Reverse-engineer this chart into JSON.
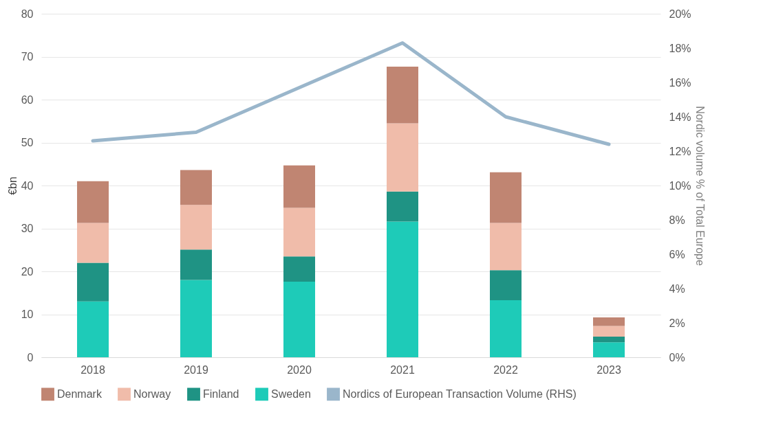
{
  "chart_data": {
    "type": "bar",
    "stacked": true,
    "categories": [
      "2018",
      "2019",
      "2020",
      "2021",
      "2022",
      "2023"
    ],
    "series": [
      {
        "name": "Sweden",
        "color": "#1ecbb8",
        "values": [
          13,
          18,
          17.6,
          31.6,
          13.3,
          3.5
        ]
      },
      {
        "name": "Finland",
        "color": "#1f9384",
        "values": [
          9,
          7.1,
          5.9,
          7,
          7,
          1.3
        ]
      },
      {
        "name": "Norway",
        "color": "#f0bcaa",
        "values": [
          9.3,
          10.4,
          11.3,
          15.9,
          11,
          2.5
        ]
      },
      {
        "name": "Denmark",
        "color": "#c08572",
        "values": [
          9.7,
          8.1,
          9.9,
          13.2,
          11.8,
          2
        ]
      },
      {
        "name": "Nordics of European Transaction Volume (RHS)",
        "type": "line",
        "axis": "y2",
        "color": "#9ab6cb",
        "values": [
          12.6,
          13.1,
          15.7,
          18.3,
          14,
          12.4
        ]
      }
    ],
    "ylabel": "€bn",
    "y2label": "Nordic volume % of Total Europe",
    "ylim": [
      0,
      80
    ],
    "yticks": [
      0,
      10,
      20,
      30,
      40,
      50,
      60,
      70,
      80
    ],
    "y2lim": [
      0,
      20
    ],
    "y2ticks": [
      {
        "value": 0,
        "label": "0%"
      },
      {
        "value": 2,
        "label": "2%"
      },
      {
        "value": 4,
        "label": "4%"
      },
      {
        "value": 6,
        "label": "6%"
      },
      {
        "value": 8,
        "label": "8%"
      },
      {
        "value": 10,
        "label": "10%"
      },
      {
        "value": 12,
        "label": "12%"
      },
      {
        "value": 14,
        "label": "14%"
      },
      {
        "value": 16,
        "label": "16%"
      },
      {
        "value": 18,
        "label": "18%"
      },
      {
        "value": 20,
        "label": "20%"
      }
    ],
    "grid": "y",
    "legend": "bottom"
  }
}
